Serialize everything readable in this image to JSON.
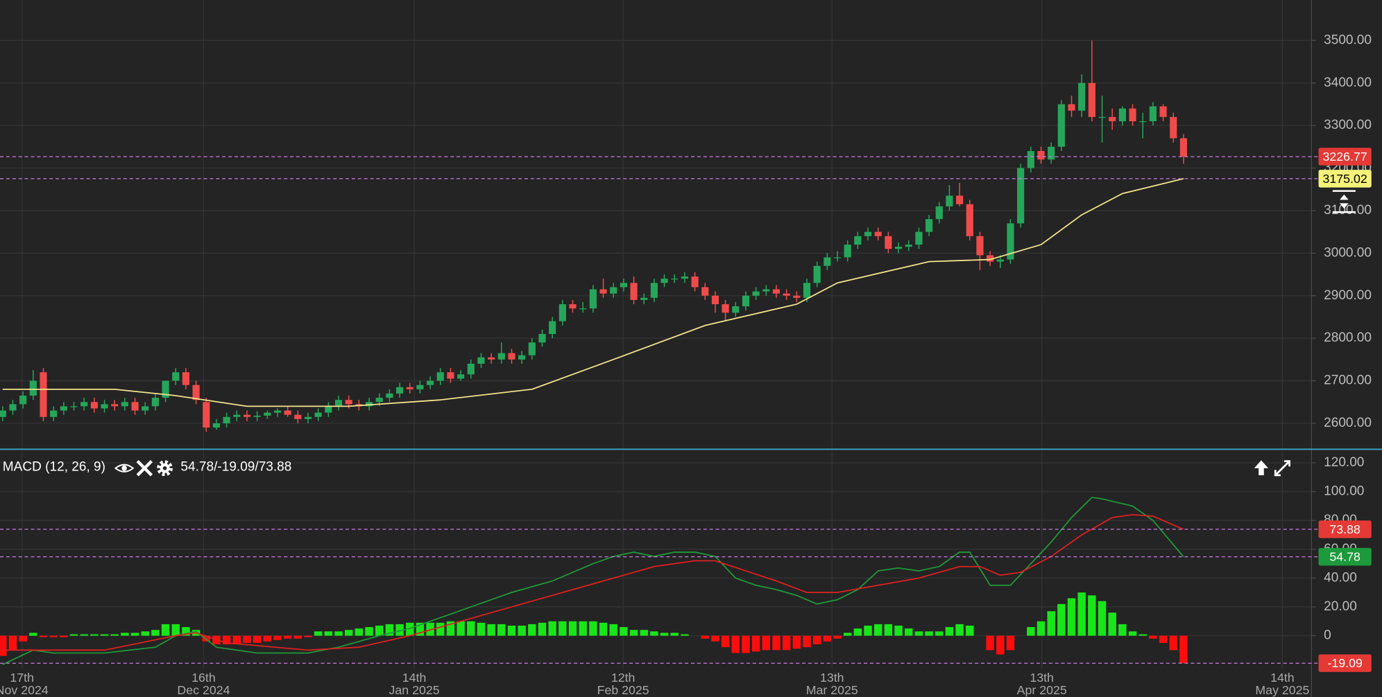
{
  "chart_data": [
    {
      "type": "candlestick",
      "xlim": [
        -0.26,
        128.57
      ],
      "ylim": [
        2540,
        3595
      ],
      "yticks": [
        {
          "value": 2600,
          "label": "2600.00"
        },
        {
          "value": 2700,
          "label": "2700.00"
        },
        {
          "value": 2800,
          "label": "2800.00"
        },
        {
          "value": 2900,
          "label": "2900.00"
        },
        {
          "value": 3000,
          "label": "3000.00"
        },
        {
          "value": 3100,
          "label": "3100.00"
        },
        {
          "value": 3200,
          "label": "3200.00"
        },
        {
          "value": 3300,
          "label": "3300.00"
        },
        {
          "value": 3400,
          "label": "3400.00"
        },
        {
          "value": 3500,
          "label": "3500.00"
        }
      ],
      "grid": true,
      "up_color": "#26a65b",
      "down_color": "#ef4b4b",
      "open": [
        2615,
        2630,
        2645,
        2665,
        2720,
        2615,
        2630,
        2640,
        2640,
        2650,
        2635,
        2645,
        2640,
        2650,
        2630,
        2640,
        2660,
        2700,
        2720,
        2690,
        2650,
        2590,
        2600,
        2615,
        2620,
        2615,
        2618,
        2625,
        2630,
        2620,
        2610,
        2615,
        2625,
        2640,
        2655,
        2645,
        2640,
        2650,
        2660,
        2670,
        2685,
        2680,
        2690,
        2700,
        2720,
        2705,
        2715,
        2740,
        2755,
        2750,
        2765,
        2750,
        2760,
        2790,
        2810,
        2840,
        2880,
        2870,
        2870,
        2915,
        2905,
        2920,
        2930,
        2890,
        2895,
        2930,
        2940,
        2940,
        2945,
        2920,
        2900,
        2880,
        2860,
        2875,
        2900,
        2910,
        2915,
        2905,
        2900,
        2895,
        2930,
        2970,
        2990,
        2990,
        3020,
        3040,
        3050,
        3040,
        3010,
        3015,
        3020,
        3050,
        3080,
        3110,
        3135,
        3115,
        3040,
        2995,
        2980,
        2985,
        3070,
        3200,
        3240,
        3220,
        3250,
        3350,
        3335,
        3400,
        3320,
        3320,
        3310,
        3340,
        3310,
        3310,
        3345,
        3320,
        3270
      ],
      "high": [
        2640,
        2655,
        2675,
        2725,
        2730,
        2640,
        2650,
        2650,
        2660,
        2660,
        2655,
        2655,
        2660,
        2660,
        2650,
        2670,
        2700,
        2730,
        2730,
        2700,
        2660,
        2610,
        2625,
        2630,
        2630,
        2628,
        2630,
        2635,
        2640,
        2630,
        2625,
        2635,
        2650,
        2665,
        2665,
        2655,
        2660,
        2670,
        2680,
        2695,
        2695,
        2700,
        2710,
        2730,
        2730,
        2725,
        2750,
        2765,
        2765,
        2790,
        2775,
        2770,
        2800,
        2820,
        2850,
        2890,
        2890,
        2885,
        2925,
        2940,
        2930,
        2940,
        2945,
        2905,
        2940,
        2950,
        2950,
        2955,
        2955,
        2930,
        2910,
        2890,
        2885,
        2910,
        2920,
        2925,
        2925,
        2915,
        2910,
        2940,
        2980,
        3000,
        3005,
        3030,
        3050,
        3060,
        3060,
        3050,
        3025,
        3030,
        3060,
        3090,
        3120,
        3160,
        3165,
        3125,
        3050,
        3005,
        2995,
        3080,
        3210,
        3250,
        3250,
        3260,
        3360,
        3370,
        3420,
        3500,
        3370,
        3340,
        3345,
        3350,
        3330,
        3355,
        3350,
        3330,
        3280
      ],
      "low": [
        2605,
        2620,
        2635,
        2655,
        2605,
        2605,
        2620,
        2630,
        2630,
        2625,
        2625,
        2630,
        2630,
        2620,
        2620,
        2630,
        2650,
        2690,
        2680,
        2645,
        2580,
        2585,
        2590,
        2605,
        2605,
        2605,
        2610,
        2615,
        2615,
        2600,
        2600,
        2605,
        2615,
        2630,
        2635,
        2630,
        2630,
        2640,
        2650,
        2660,
        2670,
        2670,
        2680,
        2690,
        2695,
        2700,
        2705,
        2730,
        2740,
        2740,
        2740,
        2740,
        2750,
        2780,
        2800,
        2830,
        2860,
        2860,
        2860,
        2895,
        2895,
        2910,
        2880,
        2880,
        2885,
        2920,
        2930,
        2930,
        2910,
        2890,
        2860,
        2840,
        2850,
        2865,
        2890,
        2900,
        2895,
        2890,
        2885,
        2885,
        2920,
        2960,
        2980,
        2980,
        3010,
        3030,
        3030,
        3000,
        3000,
        3005,
        3010,
        3040,
        3070,
        3100,
        3110,
        3030,
        2960,
        2970,
        2965,
        2975,
        3060,
        3190,
        3210,
        3210,
        3240,
        3320,
        3320,
        3310,
        3260,
        3290,
        3300,
        3300,
        3270,
        3300,
        3310,
        3260,
        3210
      ],
      "close": [
        2630,
        2645,
        2665,
        2700,
        2615,
        2630,
        2640,
        2640,
        2650,
        2635,
        2645,
        2640,
        2650,
        2630,
        2640,
        2660,
        2700,
        2720,
        2690,
        2655,
        2590,
        2600,
        2615,
        2620,
        2615,
        2618,
        2625,
        2630,
        2620,
        2610,
        2615,
        2625,
        2640,
        2655,
        2645,
        2640,
        2650,
        2660,
        2670,
        2685,
        2680,
        2690,
        2700,
        2720,
        2705,
        2715,
        2740,
        2755,
        2750,
        2765,
        2750,
        2760,
        2790,
        2810,
        2840,
        2880,
        2870,
        2870,
        2915,
        2905,
        2920,
        2930,
        2890,
        2895,
        2930,
        2940,
        2940,
        2945,
        2920,
        2900,
        2880,
        2860,
        2875,
        2900,
        2910,
        2915,
        2905,
        2900,
        2895,
        2930,
        2970,
        2990,
        2990,
        3020,
        3040,
        3050,
        3040,
        3010,
        3015,
        3020,
        3050,
        3080,
        3110,
        3135,
        3115,
        3040,
        2995,
        2980,
        2985,
        3070,
        3200,
        3240,
        3220,
        3250,
        3350,
        3335,
        3400,
        3320,
        3320,
        3310,
        3340,
        3310,
        3310,
        3345,
        3320,
        3270,
        3226.77
      ],
      "series": [
        {
          "color": "#f3e58c",
          "x": [
            0,
            11,
            17,
            24,
            29,
            34,
            43,
            52,
            60,
            69,
            78,
            82,
            91,
            97,
            102,
            106,
            110,
            116
          ],
          "values": [
            2680,
            2680,
            2665,
            2640,
            2640,
            2640,
            2655,
            2680,
            2750,
            2830,
            2880,
            2930,
            2980,
            2985,
            3020,
            3090,
            3140,
            3175.02
          ]
        }
      ],
      "price_lines": [
        {
          "value": 3226.77,
          "color": "#e53935",
          "label_text_color": "#ffffff"
        },
        {
          "value": 3175.02,
          "color": "#f5f27a",
          "label_text_color": "#000000"
        }
      ]
    },
    {
      "type": "macd",
      "title": "MACD (12, 26, 9)",
      "readout": "54.78/-19.09/73.88",
      "xlim": [
        -0.26,
        128.57
      ],
      "ylim": [
        -23,
        128.5
      ],
      "yticks": [
        0,
        {
          "value": 20,
          "label": "20.00"
        },
        {
          "value": 40,
          "label": "40.00"
        },
        {
          "value": 60,
          "label": "60.00"
        },
        {
          "value": 80,
          "label": "80.00"
        },
        {
          "value": 100,
          "label": "100.00"
        },
        {
          "value": 120,
          "label": "120.00"
        }
      ],
      "xticks": [
        {
          "value": 1.9,
          "label": "17th",
          "sublabel": "Nov 2024"
        },
        {
          "value": 19.74,
          "label": "16th",
          "sublabel": "Dec 2024"
        },
        {
          "value": 40.43,
          "label": "14th",
          "sublabel": "Jan 2025"
        },
        {
          "value": 60.95,
          "label": "12th",
          "sublabel": "Feb 2025"
        },
        {
          "value": 81.47,
          "label": "13th",
          "sublabel": "Mar 2025"
        },
        {
          "value": 102.08,
          "label": "13th",
          "sublabel": "Apr 2025"
        },
        {
          "value": 125.71,
          "label": "14th",
          "sublabel": "May 2025"
        }
      ],
      "grid": true,
      "up_color": "#19e619",
      "down_color": "#ff0d0d",
      "histogram": [
        -14,
        -10,
        -4,
        2,
        -1,
        -1,
        -1,
        1,
        1,
        1,
        1,
        1,
        2,
        2,
        3,
        4,
        8,
        8,
        6,
        4,
        -4,
        -6,
        -6,
        -6,
        -5,
        -5,
        -4,
        -3,
        -2,
        -2,
        -1,
        3,
        3,
        3,
        4,
        5,
        6,
        7,
        8,
        8,
        9,
        9,
        9,
        9,
        10,
        10,
        10,
        9,
        8,
        8,
        7,
        7,
        8,
        9,
        10,
        10,
        10,
        10,
        10,
        9,
        8,
        6,
        4,
        4,
        3,
        2,
        2,
        1,
        0,
        -2,
        -4,
        -8,
        -12,
        -12,
        -11,
        -10,
        -10,
        -10,
        -9,
        -8,
        -6,
        -4,
        -2,
        2,
        5,
        7,
        8,
        8,
        7,
        5,
        3,
        3,
        3,
        6,
        8,
        7,
        0,
        -10,
        -13,
        -10,
        0,
        6,
        10,
        17,
        22,
        26,
        30,
        28,
        24,
        16,
        8,
        3,
        1,
        -2,
        -5,
        -10,
        -19.09
      ],
      "series": [
        {
          "color": "#1f9a3a",
          "x": [
            0,
            3,
            5,
            10,
            15,
            17,
            19,
            21,
            25,
            30,
            33,
            37,
            40,
            42,
            46,
            50,
            54,
            58,
            60,
            62,
            64,
            66,
            68,
            70,
            72,
            74,
            76,
            78,
            80,
            82,
            84,
            86,
            88,
            90,
            92,
            94,
            95,
            97,
            99,
            101,
            103,
            105,
            107,
            108,
            111,
            113,
            116
          ],
          "values": [
            -20,
            -10,
            -12,
            -12,
            -8,
            0,
            3,
            -8,
            -12,
            -12,
            -8,
            0,
            5,
            10,
            20,
            30,
            38,
            50,
            55,
            58,
            55,
            58,
            58,
            55,
            40,
            35,
            32,
            28,
            22,
            25,
            32,
            45,
            47,
            45,
            48,
            58,
            58,
            35,
            35,
            50,
            65,
            82,
            96,
            95,
            90,
            80,
            54.78
          ]
        },
        {
          "color": "#e02020",
          "x": [
            0,
            10,
            17,
            19,
            22,
            30,
            35,
            40,
            45,
            50,
            55,
            60,
            64,
            68,
            70,
            73,
            76,
            79,
            82,
            86,
            90,
            94,
            96,
            98,
            100,
            103,
            106,
            109,
            111,
            113,
            116
          ],
          "values": [
            -10,
            -10,
            0,
            2,
            -5,
            -10,
            -8,
            0,
            10,
            20,
            30,
            40,
            48,
            52,
            52,
            45,
            38,
            30,
            30,
            35,
            40,
            48,
            48,
            42,
            44,
            55,
            70,
            82,
            84,
            83,
            73.88
          ]
        }
      ],
      "price_lines": [
        {
          "value": 73.88,
          "color": "#e53935",
          "label_text_color": "#ffffff"
        },
        {
          "value": 54.78,
          "color": "#1c9a3c",
          "label_text_color": "#ffffff"
        },
        {
          "value": -19.09,
          "color": "#e53935",
          "label_text_color": "#ffffff"
        }
      ]
    }
  ]
}
